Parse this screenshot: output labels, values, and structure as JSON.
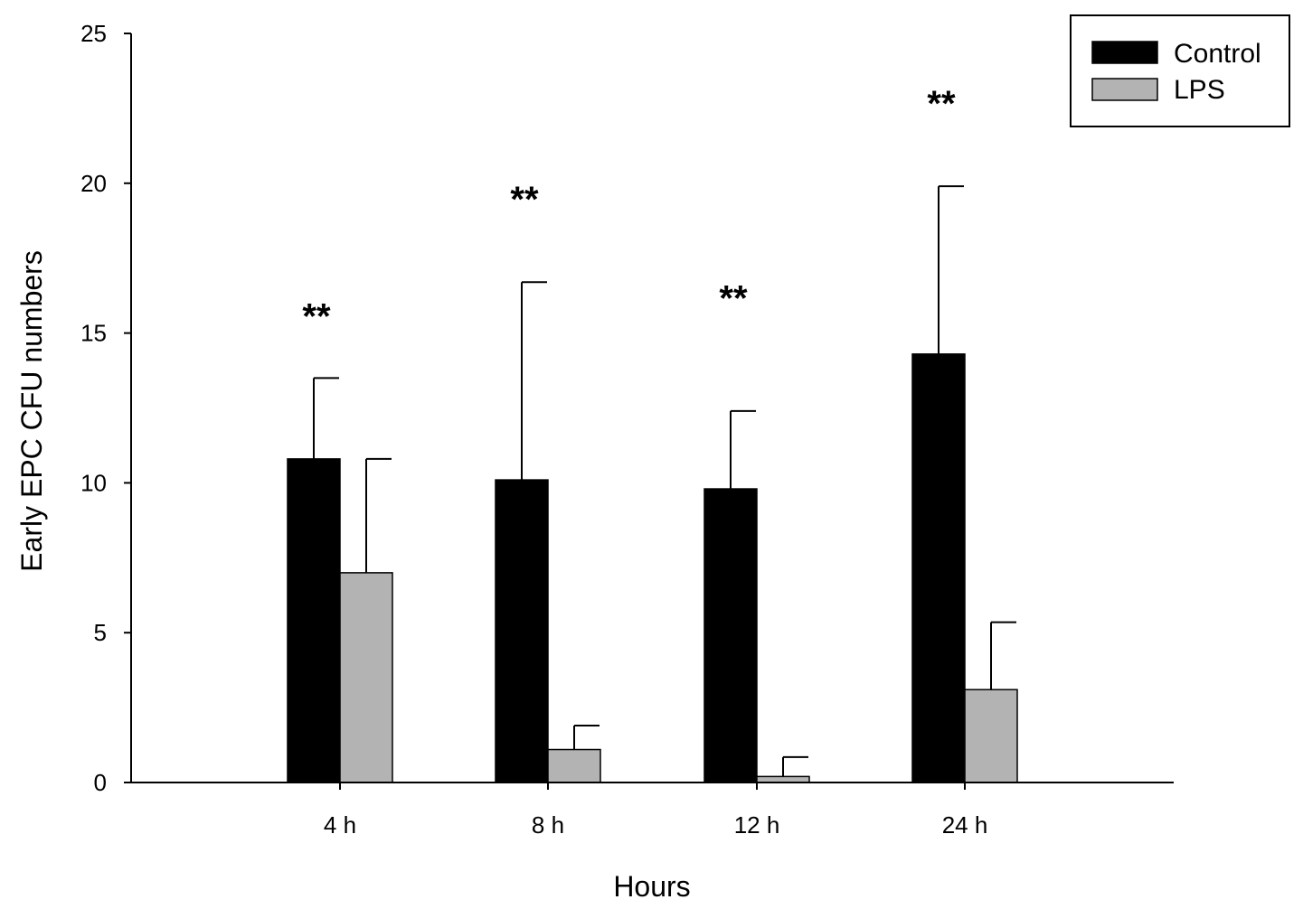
{
  "chart_data": {
    "type": "bar",
    "title": "",
    "xlabel": "Hours",
    "ylabel": "Early EPC CFU numbers",
    "categories": [
      "4 h",
      "8 h",
      "12 h",
      "24 h"
    ],
    "ylim": [
      0,
      25
    ],
    "yticks": [
      0,
      5,
      10,
      15,
      20,
      25
    ],
    "grid": false,
    "legend_position": "top-right",
    "series": [
      {
        "name": "Control",
        "color": "#000000",
        "values": [
          10.8,
          10.1,
          9.8,
          14.3
        ],
        "errors": [
          2.7,
          6.6,
          2.6,
          5.6
        ]
      },
      {
        "name": "LPS",
        "color": "#b3b3b3",
        "values": [
          7.0,
          1.1,
          0.2,
          3.1
        ],
        "errors": [
          3.8,
          0.8,
          0.65,
          2.25
        ]
      }
    ],
    "annotations": [
      {
        "category": "4 h",
        "text": "**",
        "y": 16.0
      },
      {
        "category": "8 h",
        "text": "**",
        "y": 19.9
      },
      {
        "category": "12 h",
        "text": "**",
        "y": 16.6
      },
      {
        "category": "24 h",
        "text": "**",
        "y": 23.1
      }
    ]
  }
}
